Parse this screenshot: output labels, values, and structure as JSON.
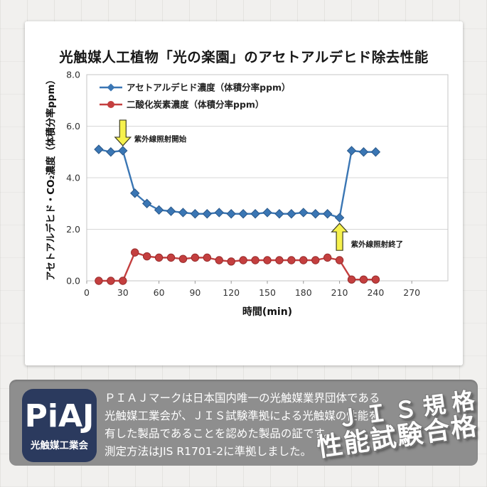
{
  "chart_card": {
    "title": "光触媒人工植物「光の楽園」のアセトアルデヒド除去性能"
  },
  "chart_data": {
    "type": "line",
    "title": "光触媒人工植物「光の楽園」のアセトアルデヒド除去性能",
    "xlabel": "時間(min)",
    "ylabel": "アセトアルデヒド・CO₂濃度（体積分率ppm）",
    "xlim": [
      0,
      300
    ],
    "ylim": [
      0,
      8
    ],
    "x_ticks": [
      0,
      30,
      60,
      90,
      120,
      150,
      180,
      210,
      240,
      270
    ],
    "y_tick_values": [
      0,
      2,
      4,
      6,
      8
    ],
    "y_tick_labels": [
      "0.0",
      "2.0",
      "4.0",
      "6.0",
      "8.0"
    ],
    "grid": "horizontal",
    "legend_position": "top-left inside",
    "x": [
      10,
      20,
      30,
      40,
      50,
      60,
      70,
      80,
      90,
      100,
      110,
      120,
      130,
      140,
      150,
      160,
      170,
      180,
      190,
      200,
      210,
      220,
      230,
      240
    ],
    "series": [
      {
        "name": "アセトアルデヒド濃度（体積分率ppm）",
        "color": "#3a76b4",
        "edge": "#2a588a",
        "marker": "diamond",
        "values": [
          5.1,
          5.0,
          5.05,
          3.4,
          3.0,
          2.75,
          2.7,
          2.65,
          2.6,
          2.6,
          2.65,
          2.6,
          2.6,
          2.6,
          2.65,
          2.6,
          2.6,
          2.65,
          2.6,
          2.6,
          2.45,
          5.05,
          5.0,
          5.0
        ]
      },
      {
        "name": "二酸化炭素濃度（体積分率ppm）",
        "color": "#c43f3f",
        "edge": "#982c2c",
        "marker": "circle",
        "values": [
          0.0,
          0.0,
          0.0,
          1.1,
          0.95,
          0.9,
          0.9,
          0.85,
          0.9,
          0.9,
          0.8,
          0.75,
          0.8,
          0.8,
          0.8,
          0.8,
          0.8,
          0.8,
          0.8,
          0.9,
          0.8,
          0.05,
          0.05,
          0.05
        ]
      }
    ],
    "annotations": [
      {
        "text": "紫外線照射開始",
        "direction": "down",
        "x": 30,
        "series_value": 5.05,
        "arrow_color": "#f6f14d"
      },
      {
        "text": "紫外線照射終了",
        "direction": "up",
        "x": 210,
        "series_value": 2.45,
        "arrow_color": "#f6f14d"
      }
    ]
  },
  "footer": {
    "logo": {
      "brand": "PiAJ",
      "org": "光触媒工業会"
    },
    "description_lines": [
      "ＰＩＡＪマークは日本国内唯一の光触媒業界団体である",
      "光触媒工業会が、ＪＩＳ試験準拠による光触媒の性能を",
      "有した製品であることを認めた製品の証です。",
      "測定方法はJIS R1701-2に準拠しました。"
    ],
    "stamp_line1": "ＪＩＳ規格",
    "stamp_line2": "性能試験合格"
  }
}
